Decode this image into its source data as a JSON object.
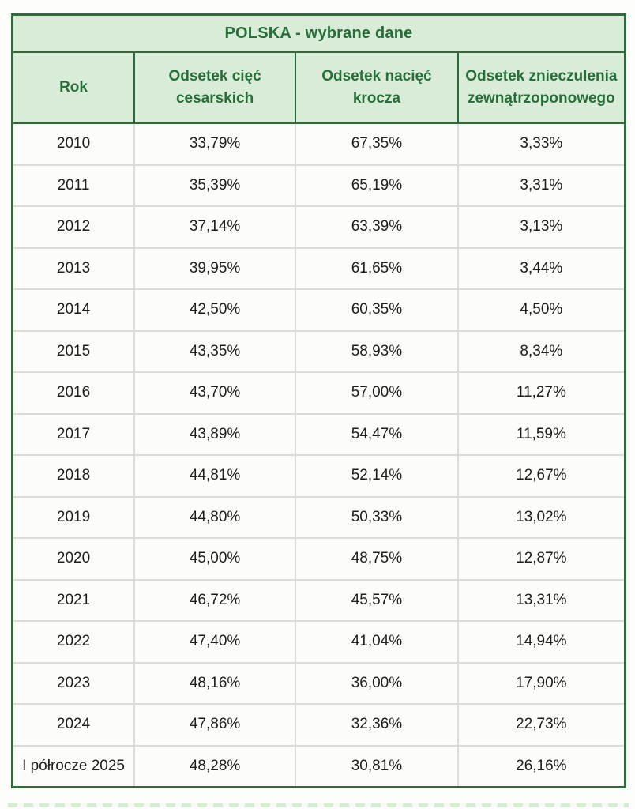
{
  "chart_data": {
    "type": "table",
    "title": "POLSKA - wybrane dane",
    "columns": [
      "Rok",
      "Odsetek cięć cesarskich",
      "Odsetek nacięć krocza",
      "Odsetek znieczulenia zewnątrzoponowego"
    ],
    "rows": [
      [
        "2010",
        "33,79%",
        "67,35%",
        "3,33%"
      ],
      [
        "2011",
        "35,39%",
        "65,19%",
        "3,31%"
      ],
      [
        "2012",
        "37,14%",
        "63,39%",
        "3,13%"
      ],
      [
        "2013",
        "39,95%",
        "61,65%",
        "3,44%"
      ],
      [
        "2014",
        "42,50%",
        "60,35%",
        "4,50%"
      ],
      [
        "2015",
        "43,35%",
        "58,93%",
        "8,34%"
      ],
      [
        "2016",
        "43,70%",
        "57,00%",
        "11,27%"
      ],
      [
        "2017",
        "43,89%",
        "54,47%",
        "11,59%"
      ],
      [
        "2018",
        "44,81%",
        "52,14%",
        "12,67%"
      ],
      [
        "2019",
        "44,80%",
        "50,33%",
        "13,02%"
      ],
      [
        "2020",
        "45,00%",
        "48,75%",
        "12,87%"
      ],
      [
        "2021",
        "46,72%",
        "45,57%",
        "13,31%"
      ],
      [
        "2022",
        "47,40%",
        "41,04%",
        "14,94%"
      ],
      [
        "2023",
        "48,16%",
        "36,00%",
        "17,90%"
      ],
      [
        "2024",
        "47,86%",
        "32,36%",
        "22,73%"
      ],
      [
        "I półrocze 2025",
        "48,28%",
        "30,81%",
        "26,16%"
      ]
    ],
    "layout": {
      "legend": "none",
      "grid": "on",
      "header_position": "top"
    }
  },
  "colors": {
    "header_background": "#d9ecd7",
    "header_text": "#276e3a",
    "outer_border": "#2e6b3b",
    "grid_line": "#dbdbd8",
    "cell_background": "#fcfcfa",
    "cell_text": "#1d1d1d"
  }
}
